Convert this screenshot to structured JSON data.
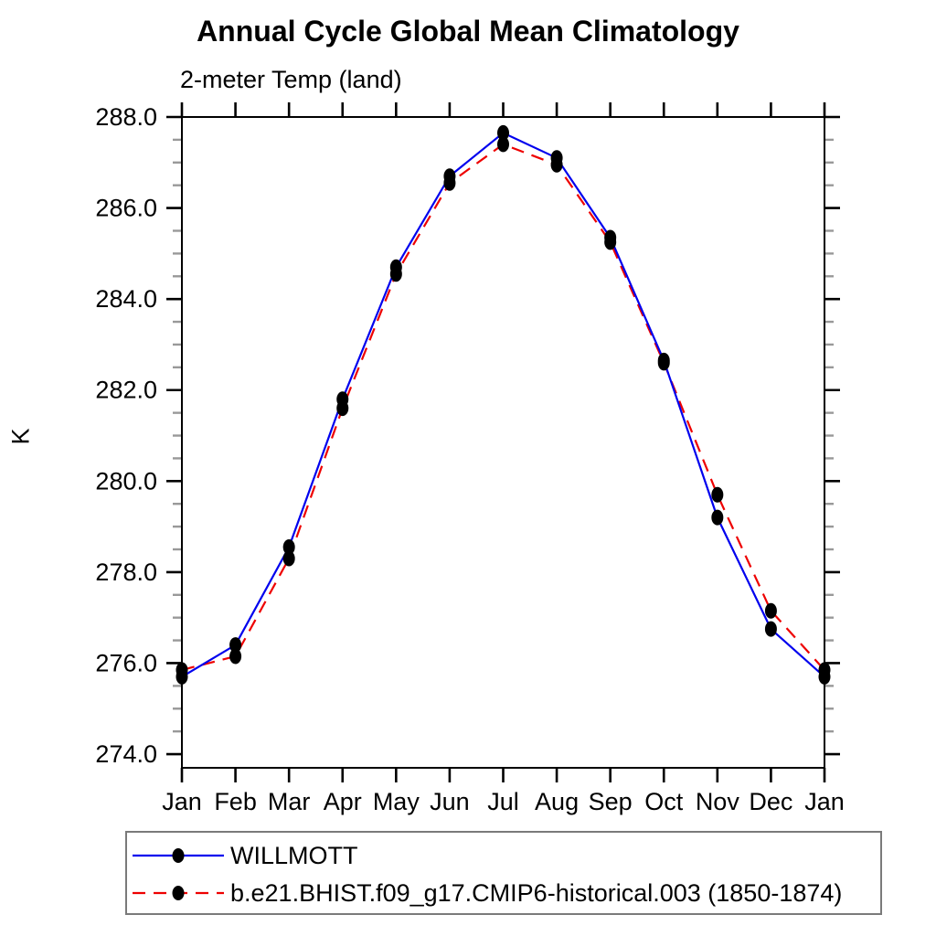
{
  "title": "Annual Cycle Global Mean Climatology",
  "subtitle": "2-meter Temp (land)",
  "colors": {
    "background": "#ffffff",
    "frame": "#000000",
    "major_tick": "#000000",
    "minor_tick": "#999999",
    "marker": "#000000",
    "text": "#000000",
    "legend_border": "#7a7a7a"
  },
  "chart_data": {
    "type": "line",
    "title": "Annual Cycle Global Mean Climatology",
    "subtitle": "2-meter Temp (land)",
    "ylabel": "K",
    "xlabel": "",
    "grid": false,
    "legend_position": "bottom-left",
    "categories": [
      "Jan",
      "Feb",
      "Mar",
      "Apr",
      "May",
      "Jun",
      "Jul",
      "Aug",
      "Sep",
      "Oct",
      "Nov",
      "Dec",
      "Jan"
    ],
    "series": [
      {
        "name": "WILLMOTT",
        "color": "#0000ee",
        "style": "solid",
        "marker": "black-dot",
        "values": [
          275.7,
          276.4,
          278.55,
          281.8,
          284.7,
          286.7,
          287.65,
          287.1,
          285.35,
          282.65,
          279.2,
          276.75,
          275.7
        ]
      },
      {
        "name": "b.e21.BHIST.f09_g17.CMIP6-historical.003 (1850-1874)",
        "color": "#ee0000",
        "style": "dashed",
        "marker": "black-dot",
        "values": [
          275.85,
          276.15,
          278.3,
          281.6,
          284.55,
          286.55,
          287.4,
          286.95,
          285.25,
          282.6,
          279.7,
          277.15,
          275.85
        ]
      }
    ],
    "y_axis": {
      "min": 273.7,
      "max": 288.0,
      "major_ticks": [
        274.0,
        276.0,
        278.0,
        280.0,
        282.0,
        284.0,
        286.0,
        288.0
      ],
      "minor_step": 0.5,
      "tick_label_format": "one-decimal"
    },
    "x_axis": {
      "ticks_every_month": true,
      "tick_sides": [
        "top",
        "bottom"
      ]
    }
  }
}
